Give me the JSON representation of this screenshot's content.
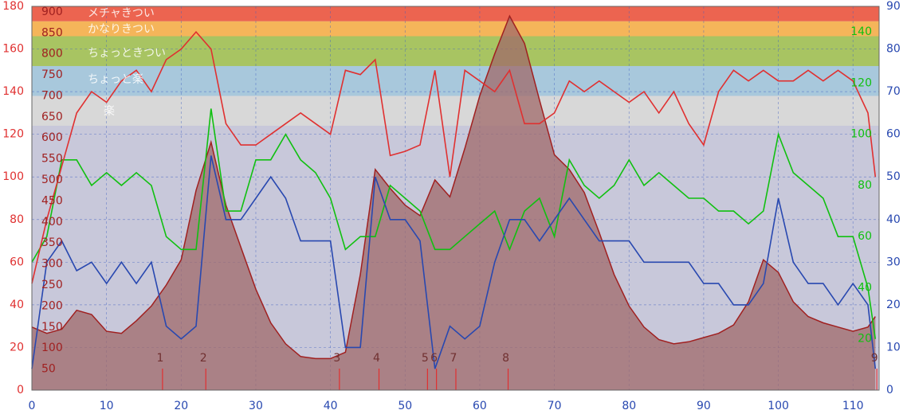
{
  "chart_data": {
    "type": "line",
    "x": [
      0,
      2,
      4,
      6,
      8,
      10,
      12,
      14,
      16,
      18,
      20,
      22,
      24,
      26,
      28,
      30,
      32,
      34,
      36,
      38,
      40,
      42,
      44,
      46,
      48,
      50,
      52,
      54,
      56,
      58,
      60,
      62,
      64,
      66,
      68,
      70,
      72,
      74,
      76,
      78,
      80,
      82,
      84,
      86,
      88,
      90,
      92,
      94,
      96,
      98,
      100,
      102,
      104,
      106,
      108,
      110,
      112,
      113
    ],
    "xlim": [
      0,
      113.5
    ],
    "xticks": [
      0,
      10,
      20,
      30,
      40,
      50,
      60,
      70,
      80,
      90,
      100,
      110
    ],
    "ylim": [
      0,
      180
    ],
    "yticks": [
      0,
      20,
      40,
      60,
      80,
      100,
      120,
      140,
      160,
      180
    ],
    "y2lim": [
      0,
      90
    ],
    "y2ticks": [
      0,
      10,
      20,
      30,
      40,
      50,
      60,
      70,
      80,
      90
    ],
    "y3lim": [
      0,
      150
    ],
    "y3ticks": [
      20,
      40,
      60,
      80,
      100,
      120,
      140
    ],
    "elevation_lim": [
      0,
      913
    ],
    "elevation_ticks": [
      50,
      100,
      150,
      200,
      250,
      300,
      350,
      400,
      450,
      500,
      550,
      600,
      650,
      700,
      750,
      800,
      850,
      900
    ],
    "zones": [
      {
        "label": "メチャきつい",
        "from": 173,
        "to": 180,
        "color": "#ec6450"
      },
      {
        "label": "かなりきつい",
        "from": 166,
        "to": 173,
        "color": "#f5b55a"
      },
      {
        "label": "ちょっときつい",
        "from": 152,
        "to": 166,
        "color": "#a8c462"
      },
      {
        "label": "ちょっと楽",
        "from": 138,
        "to": 152,
        "color": "#a8c8dc"
      },
      {
        "label": "楽",
        "from": 124,
        "to": 138,
        "color": "#d8d8d8"
      }
    ],
    "laps": [
      {
        "label": "1",
        "x": 17.5
      },
      {
        "label": "2",
        "x": 23.3
      },
      {
        "label": "3",
        "x": 41.2
      },
      {
        "label": "4",
        "x": 46.5
      },
      {
        "label": "5",
        "x": 53
      },
      {
        "label": "6",
        "x": 54.2
      },
      {
        "label": "7",
        "x": 56.8
      },
      {
        "label": "8",
        "x": 63.8
      },
      {
        "label": "9",
        "x": 113.2
      }
    ],
    "series": [
      {
        "axis": "elevation",
        "color": "#a02020",
        "fill": "#a06a6a",
        "values": [
          150,
          135,
          145,
          190,
          180,
          140,
          135,
          165,
          200,
          250,
          310,
          475,
          590,
          440,
          340,
          240,
          160,
          110,
          80,
          75,
          75,
          90,
          275,
          525,
          480,
          440,
          415,
          500,
          460,
          575,
          700,
          800,
          890,
          825,
          690,
          560,
          525,
          470,
          375,
          275,
          200,
          150,
          120,
          110,
          115,
          125,
          135,
          155,
          210,
          310,
          280,
          210,
          175,
          160,
          150,
          140,
          150,
          175
        ]
      },
      {
        "axis": "y3",
        "color": "#10c010",
        "values": [
          50,
          60,
          90,
          90,
          80,
          85,
          80,
          85,
          80,
          60,
          55,
          55,
          110,
          70,
          70,
          90,
          90,
          100,
          90,
          85,
          75,
          55,
          60,
          60,
          80,
          75,
          70,
          55,
          55,
          60,
          65,
          70,
          55,
          70,
          75,
          60,
          90,
          80,
          75,
          80,
          90,
          80,
          85,
          80,
          75,
          75,
          70,
          70,
          65,
          70,
          100,
          85,
          80,
          75,
          60,
          60,
          40,
          20
        ]
      },
      {
        "axis": "y2",
        "color": "#2848b0",
        "values": [
          5,
          30,
          35,
          28,
          30,
          25,
          30,
          25,
          30,
          15,
          12,
          15,
          55,
          40,
          40,
          45,
          50,
          45,
          35,
          35,
          35,
          10,
          10,
          50,
          40,
          40,
          35,
          5,
          15,
          12,
          15,
          30,
          40,
          40,
          35,
          40,
          45,
          40,
          35,
          35,
          35,
          30,
          30,
          30,
          30,
          25,
          25,
          20,
          20,
          25,
          45,
          30,
          25,
          25,
          20,
          25,
          20,
          5
        ]
      },
      {
        "axis": "y",
        "color": "#e03030",
        "values": [
          50,
          80,
          105,
          130,
          140,
          135,
          145,
          150,
          140,
          155,
          160,
          168,
          160,
          125,
          115,
          115,
          120,
          125,
          130,
          125,
          120,
          150,
          148,
          155,
          110,
          112,
          115,
          150,
          100,
          150,
          145,
          140,
          150,
          125,
          125,
          130,
          145,
          140,
          145,
          140,
          135,
          140,
          130,
          140,
          125,
          115,
          140,
          150,
          145,
          150,
          145,
          145,
          150,
          145,
          150,
          145,
          130,
          100
        ]
      }
    ]
  }
}
